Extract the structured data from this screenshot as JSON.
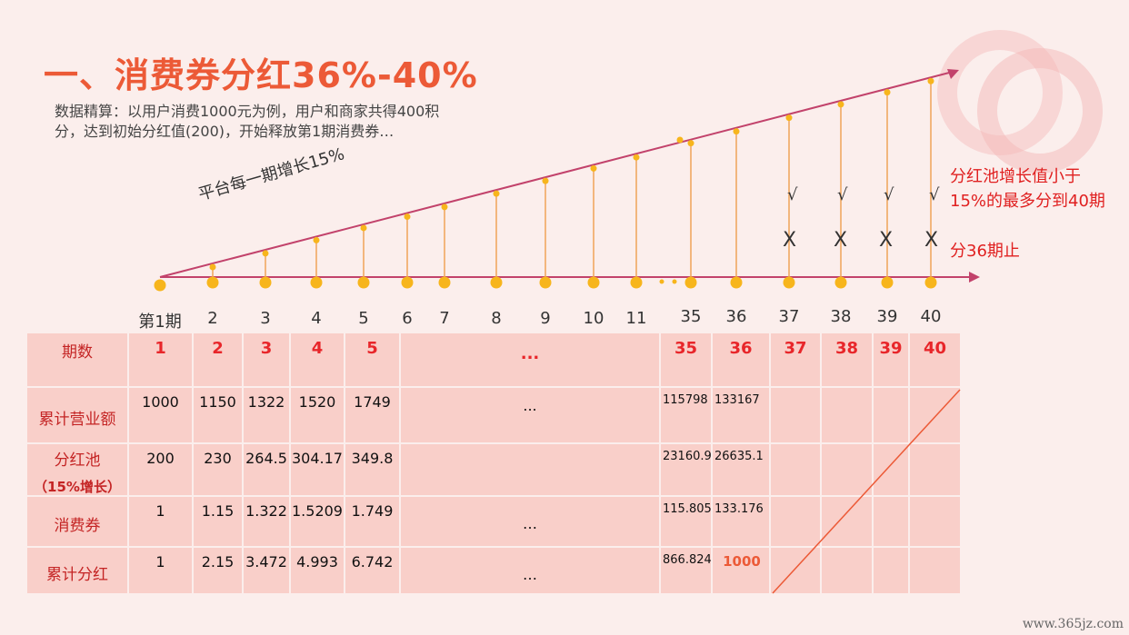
{
  "title": "一、消费券分红36%-40%",
  "description": "数据精算：以用户消费1000元为例，用户和商家共得400积分，达到初始分红值(200)，开始释放第1期消费券…",
  "slope_label": "平台每一期增长15%",
  "note_line1": "分红池增长值小于",
  "note_line2": "15%的最多分到40期",
  "note_stop": "分36期止",
  "check_mark": "√",
  "x_mark": "X",
  "period_labels": [
    "第1期",
    "2",
    "3",
    "4",
    "5",
    "6",
    "7",
    "8",
    "9",
    "10",
    "11",
    "35",
    "36",
    "37",
    "38",
    "39",
    "40"
  ],
  "table": {
    "headers": [
      "期数",
      "1",
      "2",
      "3",
      "4",
      "5",
      "...",
      "35",
      "36",
      "37",
      "38",
      "39",
      "40"
    ],
    "rows": [
      {
        "label": "累计营业额",
        "values": [
          "1000",
          "1150",
          "1322",
          "1520",
          "1749",
          "...",
          "115798",
          "133167"
        ]
      },
      {
        "label": "分红池",
        "sublabel": "（15%增长）",
        "values": [
          "200",
          "230",
          "264.5",
          "304.17",
          "349.8",
          "",
          "23160.9",
          "26635.1"
        ]
      },
      {
        "label": "消费券",
        "values": [
          "1",
          "1.15",
          "1.322",
          "1.5209",
          "1.749",
          "…",
          "115.805",
          "133.176"
        ]
      },
      {
        "label": "累计分红",
        "values": [
          "1",
          "2.15",
          "3.472",
          "4.993",
          "6.742",
          "…",
          "866.824",
          "1000"
        ]
      }
    ]
  },
  "watermark": "www.365jz.com",
  "colors": {
    "accent": "#ec5a37",
    "line": "#c2426b",
    "dot": "#f7b51c",
    "cell": "#f9cfc9"
  }
}
